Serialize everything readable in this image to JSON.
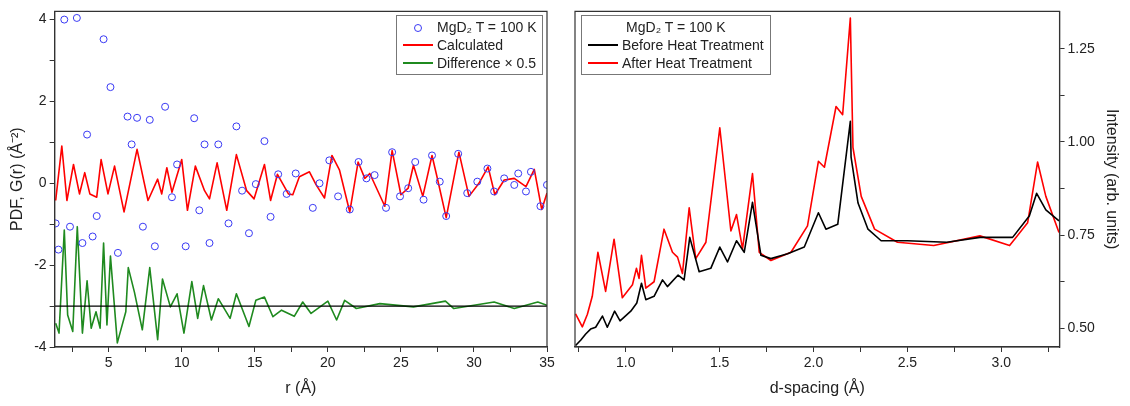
{
  "chart_data": [
    {
      "type": "line",
      "xlabel": "r (Å)",
      "ylabel": "PDF, G(r) (Å⁻²)",
      "xlim": [
        1.3,
        35
      ],
      "xticks": [
        {
          "value": 2.5,
          "label": null
        },
        5,
        {
          "value": 7.5,
          "label": null
        },
        10,
        {
          "value": 12.5,
          "label": null
        },
        15,
        {
          "value": 17.5,
          "label": null
        },
        20,
        {
          "value": 22.5,
          "label": null
        },
        25,
        {
          "value": 27.5,
          "label": null
        },
        30,
        {
          "value": 32.5,
          "label": null
        },
        35
      ],
      "ylim": [
        -4,
        4.2
      ],
      "yticks": [
        -4,
        {
          "value": -3,
          "label": null
        },
        -2,
        {
          "value": -1,
          "label": null
        },
        0,
        {
          "value": 1,
          "label": null
        },
        2,
        {
          "value": 3,
          "label": null
        },
        4
      ],
      "legend": "top right",
      "grid": false,
      "ref_lines": [
        {
          "axis": "y",
          "value": -3,
          "color": "#000000"
        }
      ],
      "series": [
        {
          "name": "MgD₂ T = 100 K",
          "type": "scatter",
          "marker": "circle",
          "color": "#3a3af5",
          "x": [
            1.37,
            1.56,
            1.96,
            2.35,
            2.82,
            3.2,
            3.52,
            3.9,
            4.18,
            4.65,
            5.12,
            5.63,
            6.29,
            6.57,
            6.94,
            7.34,
            7.81,
            8.16,
            8.86,
            9.33,
            9.68,
            10.27,
            10.85,
            11.2,
            11.56,
            11.9,
            12.5,
            13.2,
            13.74,
            14.13,
            14.6,
            15.07,
            15.66,
            16.08,
            16.6,
            17.18,
            17.8,
            18.97,
            19.43,
            20.1,
            20.7,
            21.5,
            22.1,
            22.64,
            23.2,
            23.98,
            24.4,
            24.94,
            25.5,
            25.98,
            26.55,
            27.13,
            27.66,
            28.1,
            28.92,
            29.54,
            30.23,
            30.92,
            31.38,
            32.07,
            32.76,
            33.03,
            33.56,
            33.9,
            34.55,
            35
          ],
          "values": [
            -0.98,
            -1.62,
            4.0,
            -1.06,
            4.04,
            -1.46,
            1.19,
            -1.3,
            -0.8,
            3.52,
            2.35,
            -1.7,
            1.63,
            0.95,
            1.6,
            -1.06,
            1.55,
            -1.54,
            1.87,
            -0.34,
            0.46,
            -1.54,
            1.59,
            -0.66,
            0.95,
            -1.46,
            0.95,
            -0.98,
            1.39,
            -0.18,
            -1.22,
            -0.02,
            1.03,
            -0.82,
            0.22,
            -0.26,
            0.24,
            -0.6,
            0,
            0.56,
            -0.32,
            -0.64,
            0.52,
            0.12,
            0.2,
            -0.6,
            0.76,
            -0.32,
            -0.12,
            0.52,
            -0.4,
            0.68,
            0.04,
            -0.8,
            0.72,
            -0.24,
            0.04,
            0.36,
            -0.2,
            0.12,
            -0.04,
            0.24,
            -0.2,
            0.28,
            -0.56,
            -0.04
          ]
        },
        {
          "name": "Calculated",
          "type": "line",
          "color": "#ff0000",
          "x": [
            1.37,
            1.79,
            2.14,
            2.59,
            3.0,
            3.36,
            3.71,
            4.18,
            4.48,
            4.95,
            5.4,
            6.05,
            6.94,
            7.69,
            8.35,
            8.63,
            8.98,
            9.33,
            10.0,
            10.39,
            10.93,
            11.56,
            11.9,
            12.42,
            13.08,
            13.74,
            14.44,
            14.95,
            15.66,
            16.08,
            16.55,
            17.3,
            17.6,
            18.05,
            18.74,
            19.2,
            19.77,
            20.28,
            20.8,
            21.5,
            22.07,
            22.53,
            22.87,
            23.9,
            24.4,
            25.0,
            25.5,
            25.86,
            26.5,
            27.13,
            27.47,
            28.1,
            28.97,
            29.66,
            30.34,
            30.97,
            31.43,
            32.07,
            32.76,
            33.56,
            34.13,
            34.64,
            35
          ],
          "values": [
            -0.42,
            0.91,
            -0.42,
            0.46,
            -0.26,
            0.26,
            -0.26,
            -0.34,
            0.58,
            -0.26,
            0.42,
            -0.7,
            0.83,
            -0.42,
            0.1,
            -0.26,
            0.38,
            -0.22,
            0.58,
            -0.66,
            0.42,
            -0.18,
            -0.38,
            0.5,
            -0.66,
            0.7,
            -0.18,
            -0.38,
            0.46,
            -0.42,
            0.22,
            -0.26,
            -0.28,
            0.16,
            0.28,
            -0.04,
            -0.36,
            0.68,
            0.32,
            -0.7,
            0.52,
            0.12,
            0.24,
            -0.56,
            0.8,
            -0.28,
            -0.12,
            0.44,
            -0.32,
            0.68,
            0.16,
            -0.84,
            0.76,
            -0.32,
            0,
            0.4,
            -0.28,
            0.08,
            0.12,
            -0.08,
            0.34,
            -0.64,
            -0.24
          ]
        },
        {
          "name": "Difference × 0.5",
          "type": "line",
          "color": "#1f8a1f",
          "x": [
            1.37,
            1.6,
            1.96,
            2.19,
            2.54,
            2.85,
            3.2,
            3.52,
            3.8,
            4.13,
            4.41,
            4.65,
            4.88,
            5.12,
            5.59,
            6.17,
            6.34,
            6.76,
            7.3,
            7.81,
            8.35,
            8.68,
            9.22,
            9.68,
            10.15,
            10.69,
            11.09,
            11.49,
            12.03,
            12.5,
            13.31,
            13.74,
            14.6,
            15.07,
            15.66,
            16.24,
            16.83,
            17.7,
            18.28,
            18.85,
            20.0,
            20.6,
            21.15,
            21.95,
            23.56,
            25.86,
            28.05,
            28.62,
            31.38,
            32.76,
            34.37,
            35
          ],
          "values": [
            -3.42,
            -3.66,
            -1.14,
            -3.22,
            -3.62,
            -1.06,
            -3.66,
            -2.38,
            -3.54,
            -3.14,
            -3.54,
            -1.46,
            -3.46,
            -1.78,
            -3.9,
            -3.14,
            -2.06,
            -2.66,
            -3.58,
            -2.06,
            -3.82,
            -2.34,
            -3.02,
            -2.7,
            -3.66,
            -2.4,
            -3.3,
            -2.5,
            -3.34,
            -2.82,
            -3.3,
            -2.7,
            -3.5,
            -2.86,
            -2.78,
            -3.26,
            -3.1,
            -3.25,
            -2.9,
            -3.18,
            -2.88,
            -3.34,
            -2.86,
            -3.06,
            -2.94,
            -3.02,
            -2.88,
            -3.06,
            -2.9,
            -3.06,
            -2.9,
            -2.98
          ]
        }
      ]
    },
    {
      "type": "line",
      "xlabel": "d-spacing (Å)",
      "y2label": "Intensity (arb. units)",
      "legend_title": "MgD₂ T = 100 K",
      "xlim": [
        0.73,
        3.31
      ],
      "xticks": [
        {
          "value": 0.75,
          "label": null
        },
        {
          "value": 1,
          "label": "1.0"
        },
        {
          "value": 1.25,
          "label": null
        },
        1.5,
        {
          "value": 1.75,
          "label": null
        },
        {
          "value": 2,
          "label": "2.0"
        },
        {
          "value": 2.25,
          "label": null
        },
        2.5,
        {
          "value": 2.75,
          "label": null
        },
        {
          "value": 3,
          "label": "3.0"
        },
        {
          "value": 3.25,
          "label": null
        }
      ],
      "y2lim": [
        0.45,
        1.35
      ],
      "y2ticks": [
        {
          "value": 0.5,
          "label": "0.50"
        },
        {
          "value": 0.625,
          "label": null
        },
        0.75,
        {
          "value": 0.875,
          "label": null
        },
        {
          "value": 1,
          "label": "1.00"
        },
        {
          "value": 1.125,
          "label": null
        },
        1.25
      ],
      "legend": "top left",
      "grid": false,
      "series": [
        {
          "name": "Before Heat Treatment",
          "type": "line",
          "axis": "y2",
          "color": "#000000",
          "x": [
            0.733,
            0.76,
            0.787,
            0.813,
            0.84,
            0.876,
            0.902,
            0.941,
            0.97,
            1.027,
            1.059,
            1.084,
            1.107,
            1.151,
            1.196,
            1.222,
            1.279,
            1.311,
            1.341,
            1.391,
            1.453,
            1.501,
            1.542,
            1.59,
            1.631,
            1.675,
            1.72,
            1.773,
            1.862,
            1.951,
            2.026,
            2.066,
            2.129,
            2.196,
            2.2,
            2.237,
            2.29,
            2.36,
            2.5,
            2.71,
            2.886,
            3.06,
            3.149,
            3.188,
            3.237,
            3.307
          ],
          "values": [
            0.454,
            0.468,
            0.485,
            0.498,
            0.503,
            0.533,
            0.503,
            0.546,
            0.52,
            0.546,
            0.568,
            0.621,
            0.577,
            0.586,
            0.63,
            0.612,
            0.643,
            0.63,
            0.744,
            0.652,
            0.661,
            0.718,
            0.678,
            0.735,
            0.704,
            0.838,
            0.696,
            0.687,
            0.7,
            0.718,
            0.81,
            0.766,
            0.779,
            1.055,
            0.959,
            0.836,
            0.766,
            0.735,
            0.735,
            0.731,
            0.744,
            0.744,
            0.801,
            0.862,
            0.818,
            0.788
          ]
        },
        {
          "name": "After Heat Treatment",
          "type": "line",
          "axis": "y2",
          "color": "#ff0000",
          "x": [
            0.733,
            0.769,
            0.796,
            0.822,
            0.852,
            0.893,
            0.938,
            0.982,
            1.036,
            1.057,
            1.071,
            1.084,
            1.107,
            1.151,
            1.204,
            1.249,
            1.276,
            1.302,
            1.338,
            1.373,
            1.427,
            1.501,
            1.56,
            1.59,
            1.622,
            1.675,
            1.711,
            1.773,
            1.88,
            1.968,
            2.026,
            2.058,
            2.12,
            2.155,
            2.196,
            2.21,
            2.254,
            2.325,
            2.447,
            2.64,
            2.886,
            3.044,
            3.14,
            3.193,
            3.237,
            3.307
          ],
          "values": [
            0.539,
            0.504,
            0.538,
            0.586,
            0.704,
            0.599,
            0.739,
            0.582,
            0.617,
            0.661,
            0.634,
            0.696,
            0.608,
            0.625,
            0.766,
            0.704,
            0.691,
            0.647,
            0.823,
            0.687,
            0.731,
            1.038,
            0.761,
            0.805,
            0.713,
            0.915,
            0.704,
            0.682,
            0.704,
            0.775,
            0.948,
            0.932,
            1.095,
            1.073,
            1.332,
            0.985,
            0.854,
            0.766,
            0.731,
            0.722,
            0.748,
            0.722,
            0.783,
            0.946,
            0.854,
            0.757
          ]
        }
      ]
    }
  ]
}
